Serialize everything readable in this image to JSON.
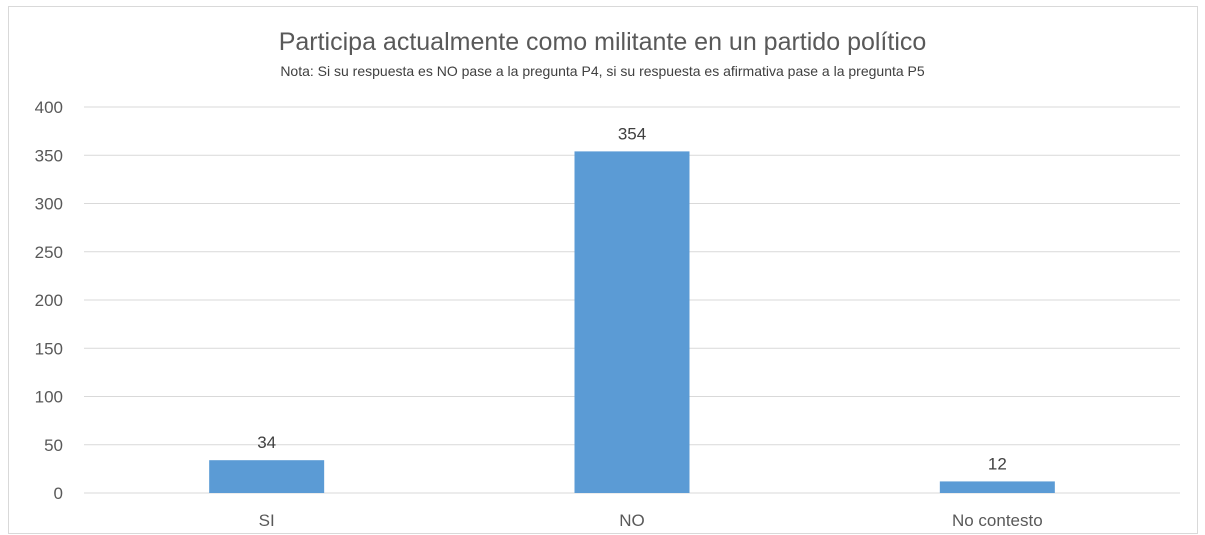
{
  "chart_data": {
    "type": "bar",
    "title": "Participa actualmente como militante en un partido político",
    "subtitle": "Nota: Si su respuesta es NO pase a la pregunta P4, si su respuesta es afirmativa pase a la pregunta P5",
    "categories": [
      "SI",
      "NO",
      "No contesto"
    ],
    "values": [
      34,
      354,
      12
    ],
    "data_labels": [
      "34",
      "354",
      "12"
    ],
    "ylim": [
      0,
      400
    ],
    "yticks": [
      0,
      50,
      100,
      150,
      200,
      250,
      300,
      350,
      400
    ],
    "xlabel": "",
    "ylabel": "",
    "grid": true,
    "legend": "none",
    "bar_color": "#5b9bd5",
    "grid_color": "#d9d9d9"
  }
}
